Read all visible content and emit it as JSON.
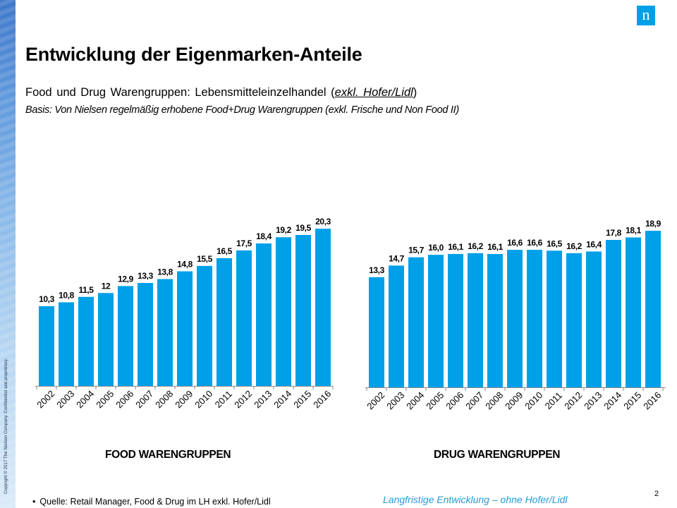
{
  "header": {
    "title": "Entwicklung der Eigenmarken-Anteile",
    "subtitle_prefix": "Food und Drug Warengruppen: Lebensmitteleinzelhandel (",
    "subtitle_emphasis": "exkl. Hofer/Lidl",
    "subtitle_suffix": ")",
    "basis": "Basis: Von Nielsen regelmäßig erhobene Food+Drug Warengruppen (exkl. Frische und Non Food II)"
  },
  "brand": {
    "logo_letter": "n",
    "accent": "#00a0e8"
  },
  "side_strip": {
    "copyright": "Copyright © 2017 The Nielsen Company. Confidential and proprietary."
  },
  "chart_data": [
    {
      "type": "bar",
      "title": "FOOD WARENGRUPPEN",
      "categories": [
        "2002",
        "2003",
        "2004",
        "2005",
        "2006",
        "2007",
        "2008",
        "2009",
        "2010",
        "2011",
        "2012",
        "2013",
        "2014",
        "2015",
        "2016"
      ],
      "values": [
        10.3,
        10.8,
        11.5,
        12,
        12.9,
        13.3,
        13.8,
        14.8,
        15.5,
        16.5,
        17.5,
        18.4,
        19.2,
        19.5,
        20.3
      ],
      "labels": [
        "10,3",
        "10,8",
        "11,5",
        "12",
        "12,9",
        "13,3",
        "13,8",
        "14,8",
        "15,5",
        "16,5",
        "17,5",
        "18,4",
        "19,2",
        "19,5",
        "20,3"
      ],
      "ylim": [
        0,
        21.5
      ],
      "color": "#00a0e8",
      "grid": false
    },
    {
      "type": "bar",
      "title": "DRUG WARENGRUPPEN",
      "categories": [
        "2002",
        "2003",
        "2004",
        "2005",
        "2006",
        "2007",
        "2008",
        "2009",
        "2010",
        "2011",
        "2012",
        "2013",
        "2014",
        "2015",
        "2016"
      ],
      "values": [
        13.3,
        14.7,
        15.7,
        16.0,
        16.1,
        16.2,
        16.1,
        16.6,
        16.6,
        16.5,
        16.2,
        16.4,
        17.8,
        18.1,
        18.9
      ],
      "labels": [
        "13,3",
        "14,7",
        "15,7",
        "16,0",
        "16,1",
        "16,2",
        "16,1",
        "16,6",
        "16,6",
        "16,5",
        "16,2",
        "16,4",
        "17,8",
        "18,1",
        "18,9"
      ],
      "ylim": [
        0,
        20.1
      ],
      "color": "#00a0e8",
      "grid": false
    }
  ],
  "footer": {
    "source": "Quelle: Retail Manager, Food & Drug im LH exkl. Hofer/Lidl",
    "bullet": "•",
    "tagline": "Langfristige Entwicklung – ohne Hofer/Lidl",
    "page_number": "2"
  }
}
